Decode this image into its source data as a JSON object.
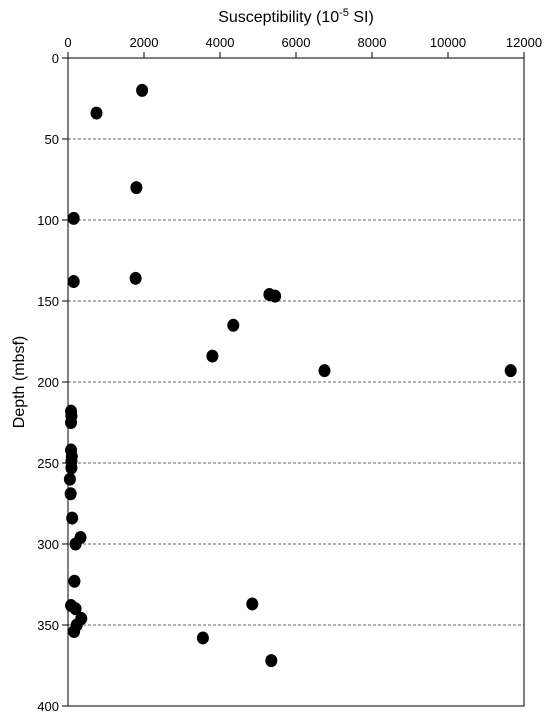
{
  "chart_data": {
    "type": "scatter",
    "xlabel": "Susceptibility (10",
    "xlabel_exponent": "-5",
    "xlabel_unit": " SI)",
    "ylabel": "Depth (mbsf)",
    "x_axis_position": "top",
    "y_inverted": true,
    "xlim": [
      0,
      12000
    ],
    "ylim": [
      0,
      400
    ],
    "x_ticks": [
      0,
      2000,
      4000,
      6000,
      8000,
      10000,
      12000
    ],
    "y_ticks": [
      0,
      50,
      100,
      150,
      200,
      250,
      300,
      350,
      400
    ],
    "gridlines": "horizontal dashed at 50, 100, 150, 200, 250, 300, 350",
    "marker_color": "#000000",
    "points": [
      {
        "x": 1950,
        "y": 20
      },
      {
        "x": 750,
        "y": 34
      },
      {
        "x": 1800,
        "y": 80
      },
      {
        "x": 150,
        "y": 99
      },
      {
        "x": 150,
        "y": 138
      },
      {
        "x": 1780,
        "y": 136
      },
      {
        "x": 5300,
        "y": 146
      },
      {
        "x": 5450,
        "y": 147
      },
      {
        "x": 4350,
        "y": 165
      },
      {
        "x": 3800,
        "y": 184
      },
      {
        "x": 6750,
        "y": 193
      },
      {
        "x": 11650,
        "y": 193
      },
      {
        "x": 80,
        "y": 218
      },
      {
        "x": 90,
        "y": 221
      },
      {
        "x": 80,
        "y": 225
      },
      {
        "x": 80,
        "y": 242
      },
      {
        "x": 100,
        "y": 246
      },
      {
        "x": 90,
        "y": 249
      },
      {
        "x": 90,
        "y": 253
      },
      {
        "x": 50,
        "y": 260
      },
      {
        "x": 70,
        "y": 269
      },
      {
        "x": 110,
        "y": 284
      },
      {
        "x": 330,
        "y": 296
      },
      {
        "x": 200,
        "y": 300
      },
      {
        "x": 170,
        "y": 323
      },
      {
        "x": 80,
        "y": 338
      },
      {
        "x": 200,
        "y": 340
      },
      {
        "x": 4850,
        "y": 337
      },
      {
        "x": 350,
        "y": 346
      },
      {
        "x": 230,
        "y": 350
      },
      {
        "x": 160,
        "y": 354
      },
      {
        "x": 3550,
        "y": 358
      },
      {
        "x": 5350,
        "y": 372
      }
    ]
  }
}
